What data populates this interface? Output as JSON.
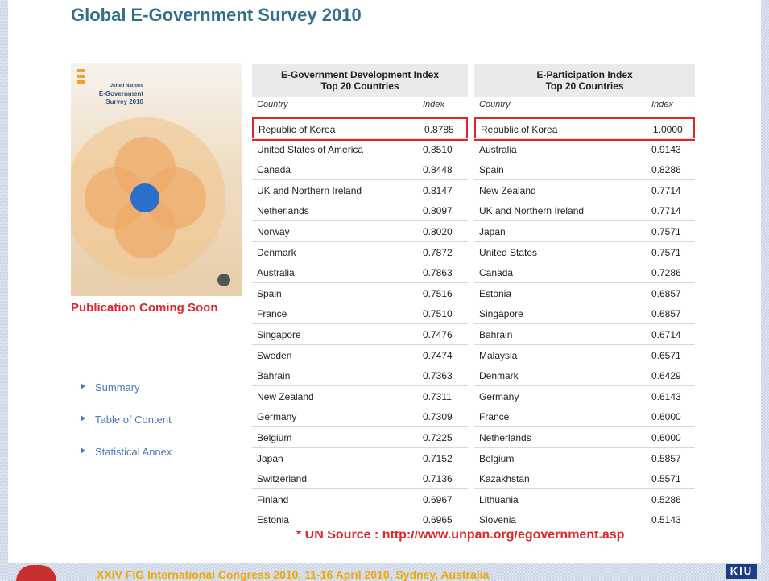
{
  "header": {
    "title": "Global E-Government Survey 2010"
  },
  "cover": {
    "lines": [
      "United Nations",
      "E-Government",
      "Survey 2010"
    ]
  },
  "publication_note": "Publication Coming Soon",
  "links": [
    "Summary",
    "Table of Content",
    "Statistical Annex"
  ],
  "tables": [
    {
      "title": [
        "E-Government Development Index",
        "Top 20 Countries"
      ],
      "columns": [
        "Country",
        "Index"
      ],
      "rows": [
        [
          "Republic of Korea",
          "0.8785"
        ],
        [
          "United States of America",
          "0.8510"
        ],
        [
          "Canada",
          "0.8448"
        ],
        [
          "UK and Northern Ireland",
          "0.8147"
        ],
        [
          "Netherlands",
          "0.8097"
        ],
        [
          "Norway",
          "0.8020"
        ],
        [
          "Denmark",
          "0.7872"
        ],
        [
          "Australia",
          "0.7863"
        ],
        [
          "Spain",
          "0.7516"
        ],
        [
          "France",
          "0.7510"
        ],
        [
          "Singapore",
          "0.7476"
        ],
        [
          "Sweden",
          "0.7474"
        ],
        [
          "Bahrain",
          "0.7363"
        ],
        [
          "New Zealand",
          "0.7311"
        ],
        [
          "Germany",
          "0.7309"
        ],
        [
          "Belgium",
          "0.7225"
        ],
        [
          "Japan",
          "0.7152"
        ],
        [
          "Switzerland",
          "0.7136"
        ],
        [
          "Finland",
          "0.6967"
        ],
        [
          "Estonia",
          "0.6965"
        ]
      ]
    },
    {
      "title": [
        "E-Participation Index",
        "Top 20 Countries"
      ],
      "columns": [
        "Country",
        "Index"
      ],
      "rows": [
        [
          "Republic of Korea",
          "1.0000"
        ],
        [
          "Australia",
          "0.9143"
        ],
        [
          "Spain",
          "0.8286"
        ],
        [
          "New Zealand",
          "0.7714"
        ],
        [
          "UK and Northern Ireland",
          "0.7714"
        ],
        [
          "Japan",
          "0.7571"
        ],
        [
          "United States",
          "0.7571"
        ],
        [
          "Canada",
          "0.7286"
        ],
        [
          "Estonia",
          "0.6857"
        ],
        [
          "Singapore",
          "0.6857"
        ],
        [
          "Bahrain",
          "0.6714"
        ],
        [
          "Malaysia",
          "0.6571"
        ],
        [
          "Denmark",
          "0.6429"
        ],
        [
          "Germany",
          "0.6143"
        ],
        [
          "France",
          "0.6000"
        ],
        [
          "Netherlands",
          "0.6000"
        ],
        [
          "Belgium",
          "0.5857"
        ],
        [
          "Kazakhstan",
          "0.5571"
        ],
        [
          "Lithuania",
          "0.5286"
        ],
        [
          "Slovenia",
          "0.5143"
        ]
      ]
    }
  ],
  "source": "* UN Source : http://www.unpan.org/egovernment.asp",
  "footer": {
    "text": "XXIV  FIG International Congress 2010, 11-16 April 2010, Sydney, Australia",
    "logo": "KIU"
  }
}
